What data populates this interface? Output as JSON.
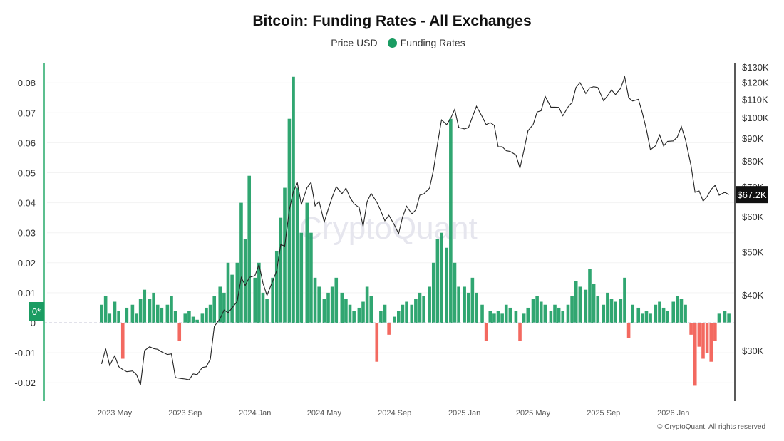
{
  "title": "Bitcoin: Funding Rates - All Exchanges",
  "legend": [
    {
      "label": "Price USD",
      "marker": "line",
      "color": "#333333"
    },
    {
      "label": "Funding Rates",
      "marker": "dot",
      "color": "#1a9c62"
    }
  ],
  "watermark": "CryptoQuant",
  "copyright": "© CryptoQuant. All rights reserved",
  "chart_data": {
    "type": "bar+line",
    "title": "Bitcoin: Funding Rates - All Exchanges",
    "colors": {
      "positive": "#1a9c62",
      "negative": "#f04438",
      "price": "#222222",
      "left_axis": "#5cbf8f",
      "right_axis": "#222222"
    },
    "left_axis": {
      "ticks": [
        -0.02,
        -0.01,
        0,
        0.01,
        0.02,
        0.03,
        0.04,
        0.05,
        0.06,
        0.07,
        0.08
      ],
      "tick_labels": [
        "-0.02",
        "-0.01",
        "0",
        "0.01",
        "0.02",
        "0.03",
        "0.04",
        "0.05",
        "0.06",
        "0.07",
        "0.08"
      ],
      "marker_label": "0*"
    },
    "right_axis": {
      "scale": "log",
      "ticks": [
        30000,
        40000,
        50000,
        60000,
        70000,
        80000,
        90000,
        100000,
        110000,
        120000,
        130000
      ],
      "tick_labels": [
        "$30K",
        "$40K",
        "$50K",
        "$60K",
        "$70K",
        "$80K",
        "$90K",
        "$100K",
        "$110K",
        "$120K",
        "$130K"
      ],
      "last_value_label": "$67.2K"
    },
    "x_axis": {
      "ticks": [
        "2023-05-01",
        "2023-09-01",
        "2024-01-01",
        "2024-05-01",
        "2024-09-01",
        "2025-01-01",
        "2025-05-01",
        "2025-09-01",
        "2026-01-01"
      ],
      "tick_labels": [
        "2023 May",
        "2023 Sep",
        "2024 Jan",
        "2024 May",
        "2024 Sep",
        "2025 Jan",
        "2025 May",
        "2025 Sep",
        "2026 Jan"
      ]
    },
    "grid": true,
    "legend_position": "top",
    "dates": [
      "2023-04-08",
      "2023-04-15",
      "2023-04-22",
      "2023-05-01",
      "2023-05-08",
      "2023-05-15",
      "2023-05-22",
      "2023-06-01",
      "2023-06-08",
      "2023-06-15",
      "2023-06-22",
      "2023-07-01",
      "2023-07-08",
      "2023-07-15",
      "2023-07-22",
      "2023-08-01",
      "2023-08-08",
      "2023-08-15",
      "2023-08-22",
      "2023-09-01",
      "2023-09-08",
      "2023-09-15",
      "2023-09-22",
      "2023-10-01",
      "2023-10-08",
      "2023-10-15",
      "2023-10-22",
      "2023-11-01",
      "2023-11-08",
      "2023-11-15",
      "2023-11-22",
      "2023-12-01",
      "2023-12-08",
      "2023-12-15",
      "2023-12-22",
      "2024-01-01",
      "2024-01-08",
      "2024-01-15",
      "2024-01-22",
      "2024-02-01",
      "2024-02-08",
      "2024-02-15",
      "2024-02-22",
      "2024-03-01",
      "2024-03-08",
      "2024-03-15",
      "2024-03-22",
      "2024-04-01",
      "2024-04-08",
      "2024-04-15",
      "2024-04-22",
      "2024-05-01",
      "2024-05-08",
      "2024-05-15",
      "2024-05-22",
      "2024-06-01",
      "2024-06-08",
      "2024-06-15",
      "2024-06-22",
      "2024-07-01",
      "2024-07-08",
      "2024-07-15",
      "2024-07-22",
      "2024-08-01",
      "2024-08-08",
      "2024-08-15",
      "2024-08-22",
      "2024-09-01",
      "2024-09-08",
      "2024-09-15",
      "2024-09-22",
      "2024-10-01",
      "2024-10-08",
      "2024-10-15",
      "2024-10-22",
      "2024-11-01",
      "2024-11-08",
      "2024-11-15",
      "2024-11-22",
      "2024-12-01",
      "2024-12-08",
      "2024-12-15",
      "2024-12-22",
      "2025-01-01",
      "2025-01-08",
      "2025-01-15",
      "2025-01-22",
      "2025-02-01",
      "2025-02-08",
      "2025-02-15",
      "2025-02-22",
      "2025-03-01",
      "2025-03-08",
      "2025-03-15",
      "2025-03-22",
      "2025-04-01",
      "2025-04-08",
      "2025-04-15",
      "2025-04-22",
      "2025-05-01",
      "2025-05-08",
      "2025-05-15",
      "2025-05-22",
      "2025-06-01",
      "2025-06-08",
      "2025-06-15",
      "2025-06-22",
      "2025-07-01",
      "2025-07-08",
      "2025-07-15",
      "2025-07-22",
      "2025-08-01",
      "2025-08-08",
      "2025-08-15",
      "2025-08-22",
      "2025-09-01",
      "2025-09-08",
      "2025-09-15",
      "2025-09-22",
      "2025-10-01",
      "2025-10-08",
      "2025-10-15",
      "2025-10-22",
      "2025-11-01",
      "2025-11-08",
      "2025-11-15",
      "2025-11-22",
      "2025-12-01",
      "2025-12-08",
      "2025-12-15",
      "2025-12-22",
      "2026-01-01",
      "2026-01-08",
      "2026-01-15",
      "2026-01-22",
      "2026-02-01",
      "2026-02-08",
      "2026-02-15",
      "2026-02-22",
      "2026-03-01",
      "2026-03-08",
      "2026-03-15",
      "2026-03-22",
      "2026-04-01",
      "2026-04-08"
    ],
    "series": [
      {
        "name": "Price USD",
        "axis": "right",
        "type": "line",
        "values": [
          28000,
          30300,
          27800,
          29200,
          27600,
          27200,
          26900,
          27000,
          26500,
          25100,
          30000,
          30600,
          30300,
          30200,
          29800,
          29400,
          29500,
          26100,
          26000,
          25900,
          25800,
          26600,
          26500,
          27500,
          27600,
          28700,
          34000,
          35400,
          37000,
          36500,
          37400,
          38700,
          43800,
          42000,
          43800,
          44200,
          46800,
          42500,
          39900,
          43000,
          45300,
          51900,
          51500,
          62000,
          68200,
          71400,
          63800,
          69700,
          71600,
          63400,
          64900,
          58300,
          62300,
          66300,
          70000,
          67500,
          69500,
          66200,
          64100,
          62800,
          57000,
          64800,
          67600,
          64600,
          61700,
          58700,
          60400,
          57300,
          54900,
          59900,
          63300,
          60800,
          62100,
          67000,
          67400,
          69500,
          76500,
          87500,
          98900,
          96500,
          99800,
          104400,
          95100,
          94400,
          95000,
          100500,
          106100,
          100600,
          96500,
          97500,
          96200,
          86000,
          86100,
          84300,
          84000,
          82500,
          77000,
          84500,
          93500,
          96500,
          103000,
          103700,
          111700,
          105600,
          105600,
          105500,
          101000,
          105700,
          108200,
          117000,
          119900,
          113300,
          116700,
          117400,
          116900,
          109200,
          112000,
          115400,
          112700,
          116500,
          123500,
          110800,
          109000,
          110000,
          102300,
          94000,
          84700,
          86500,
          91500,
          86400,
          88500,
          88700,
          90500,
          95500,
          89500,
          78000,
          68000,
          68500,
          65000,
          66500,
          69000,
          70500,
          67000,
          68000,
          67200
        ]
      },
      {
        "name": "Funding Rates",
        "axis": "left",
        "type": "bar",
        "values": [
          0.006,
          0.009,
          0.003,
          0.007,
          0.004,
          -0.012,
          0.005,
          0.006,
          0.003,
          0.008,
          0.011,
          0.008,
          0.01,
          0.006,
          0.005,
          0.006,
          0.009,
          0.004,
          -0.006,
          0.003,
          0.004,
          0.002,
          0.001,
          0.003,
          0.005,
          0.006,
          0.009,
          0.012,
          0.01,
          0.02,
          0.016,
          0.02,
          0.04,
          0.028,
          0.049,
          0.015,
          0.02,
          0.01,
          0.008,
          0.015,
          0.024,
          0.035,
          0.045,
          0.068,
          0.082,
          0.045,
          0.03,
          0.04,
          0.03,
          0.015,
          0.012,
          0.008,
          0.01,
          0.012,
          0.015,
          0.01,
          0.008,
          0.006,
          0.004,
          0.005,
          0.007,
          0.012,
          0.009,
          -0.013,
          0.004,
          0.006,
          -0.004,
          0.002,
          0.004,
          0.006,
          0.007,
          0.006,
          0.008,
          0.01,
          0.009,
          0.012,
          0.02,
          0.028,
          0.03,
          0.025,
          0.068,
          0.02,
          0.012,
          0.012,
          0.01,
          0.015,
          0.01,
          0.006,
          -0.006,
          0.004,
          0.003,
          0.004,
          0.003,
          0.006,
          0.005,
          0.004,
          -0.006,
          0.003,
          0.005,
          0.008,
          0.009,
          0.007,
          0.006,
          0.004,
          0.006,
          0.005,
          0.004,
          0.006,
          0.009,
          0.014,
          0.012,
          0.011,
          0.018,
          0.013,
          0.009,
          0.006,
          0.01,
          0.008,
          0.007,
          0.008,
          0.015,
          -0.005,
          0.006,
          0.005,
          0.003,
          0.004,
          0.003,
          0.006,
          0.007,
          0.005,
          0.004,
          0.007,
          0.009,
          0.008,
          0.006,
          -0.004,
          -0.021,
          -0.008,
          -0.012,
          -0.01,
          -0.013,
          -0.006,
          0.003,
          0.004,
          0.003
        ]
      }
    ]
  }
}
